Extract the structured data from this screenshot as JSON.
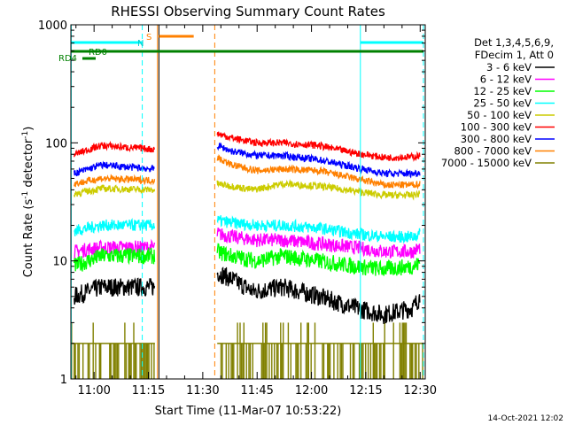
{
  "chart_data": {
    "type": "line",
    "title": "RHESSI Observing Summary Count Rates",
    "xlabel": "Start Time (11-Mar-07 10:53:22)",
    "ylabel_main": "Count Rate (s",
    "ylabel_sup1": "-1",
    "ylabel_mid": " detector",
    "ylabel_sup2": "-1",
    "ylabel_end": ")",
    "y_scale": "log",
    "ylim": [
      1,
      1000
    ],
    "xlim_minutes": [
      -6.4,
      91.4
    ],
    "x_ticks": [
      {
        "label": "11:00",
        "min": 0
      },
      {
        "label": "11:15",
        "min": 15
      },
      {
        "label": "11:30",
        "min": 30
      },
      {
        "label": "11:45",
        "min": 45
      },
      {
        "label": "12:00",
        "min": 60
      },
      {
        "label": "12:15",
        "min": 75
      },
      {
        "label": "12:30",
        "min": 90
      }
    ],
    "y_ticks": [
      {
        "label": "1000",
        "v": 1000
      },
      {
        "label": "100",
        "v": 100
      },
      {
        "label": "10",
        "v": 10
      },
      {
        "label": "1",
        "v": 1
      }
    ],
    "legend_header": [
      "Det 1,3,4,5,6,9,",
      "FDecim 1, Att 0"
    ],
    "legend_position": "right",
    "series": [
      {
        "name": "3 - 6 keV",
        "color": "#000000",
        "noise": 0.08,
        "points": [
          [
            -5.5,
            5
          ],
          [
            2,
            6
          ],
          [
            16.5,
            6
          ],
          [
            34,
            8
          ],
          [
            38,
            7
          ],
          [
            44,
            5.5
          ],
          [
            52,
            6
          ],
          [
            62,
            5
          ],
          [
            72,
            4
          ],
          [
            80,
            3.5
          ],
          [
            88,
            4
          ],
          [
            90,
            5
          ]
        ]
      },
      {
        "name": "6 - 12 keV",
        "color": "#ff00ff",
        "noise": 0.06,
        "points": [
          [
            -5.5,
            12
          ],
          [
            2,
            13
          ],
          [
            16.5,
            13
          ],
          [
            34,
            17
          ],
          [
            38,
            16
          ],
          [
            45,
            15
          ],
          [
            52,
            15
          ],
          [
            62,
            14
          ],
          [
            72,
            13
          ],
          [
            80,
            12
          ],
          [
            88,
            12
          ],
          [
            90,
            13
          ]
        ]
      },
      {
        "name": "12 - 25 keV",
        "color": "#00ff00",
        "noise": 0.07,
        "points": [
          [
            -5.5,
            9
          ],
          [
            2,
            11
          ],
          [
            16.5,
            11
          ],
          [
            34,
            12
          ],
          [
            38,
            11
          ],
          [
            45,
            10
          ],
          [
            52,
            11
          ],
          [
            62,
            10
          ],
          [
            72,
            9
          ],
          [
            80,
            8.5
          ],
          [
            88,
            9
          ],
          [
            90,
            9.5
          ]
        ]
      },
      {
        "name": "25 - 50 keV",
        "color": "#00ffff",
        "noise": 0.05,
        "points": [
          [
            -5.5,
            18
          ],
          [
            2,
            20
          ],
          [
            16.5,
            20
          ],
          [
            34,
            22
          ],
          [
            38,
            21
          ],
          [
            45,
            20
          ],
          [
            52,
            20
          ],
          [
            62,
            19
          ],
          [
            72,
            17
          ],
          [
            80,
            16
          ],
          [
            88,
            16
          ],
          [
            90,
            17
          ]
        ]
      },
      {
        "name": "50 - 100 keV",
        "color": "#cccc00",
        "noise": 0.03,
        "points": [
          [
            -5.5,
            37
          ],
          [
            2,
            41
          ],
          [
            16.5,
            40
          ],
          [
            34,
            45
          ],
          [
            38,
            43
          ],
          [
            44,
            40
          ],
          [
            52,
            45
          ],
          [
            62,
            43
          ],
          [
            72,
            39
          ],
          [
            80,
            36
          ],
          [
            88,
            36
          ],
          [
            90,
            37
          ]
        ]
      },
      {
        "name": "100 - 300 keV",
        "color": "#ff0000",
        "noise": 0.03,
        "points": [
          [
            -5.5,
            80
          ],
          [
            2,
            95
          ],
          [
            16.5,
            88
          ],
          [
            34,
            120
          ],
          [
            38,
            110
          ],
          [
            45,
            100
          ],
          [
            52,
            100
          ],
          [
            62,
            95
          ],
          [
            72,
            82
          ],
          [
            80,
            75
          ],
          [
            88,
            76
          ],
          [
            90,
            78
          ]
        ]
      },
      {
        "name": "300 - 800 keV",
        "color": "#0000ff",
        "noise": 0.03,
        "points": [
          [
            -5.5,
            55
          ],
          [
            2,
            65
          ],
          [
            16.5,
            60
          ],
          [
            34,
            95
          ],
          [
            38,
            85
          ],
          [
            45,
            78
          ],
          [
            52,
            78
          ],
          [
            62,
            72
          ],
          [
            72,
            62
          ],
          [
            80,
            55
          ],
          [
            88,
            55
          ],
          [
            90,
            56
          ]
        ]
      },
      {
        "name": "800 - 7000 keV",
        "color": "#ff8000",
        "noise": 0.03,
        "points": [
          [
            -5.5,
            45
          ],
          [
            2,
            50
          ],
          [
            16.5,
            48
          ],
          [
            34,
            75
          ],
          [
            38,
            65
          ],
          [
            45,
            58
          ],
          [
            52,
            60
          ],
          [
            62,
            58
          ],
          [
            72,
            50
          ],
          [
            80,
            44
          ],
          [
            88,
            44
          ],
          [
            90,
            45
          ]
        ]
      },
      {
        "name": "7000 - 15000 keV",
        "color": "#808000",
        "noise": 0,
        "points": []
      }
    ],
    "annotations": {
      "N_label": "N",
      "S_label": "S",
      "RD0_label": "RD0",
      "RD4_label": "RD4"
    }
  },
  "footer": {
    "timestamp": "14-Oct-2021 12:02"
  }
}
